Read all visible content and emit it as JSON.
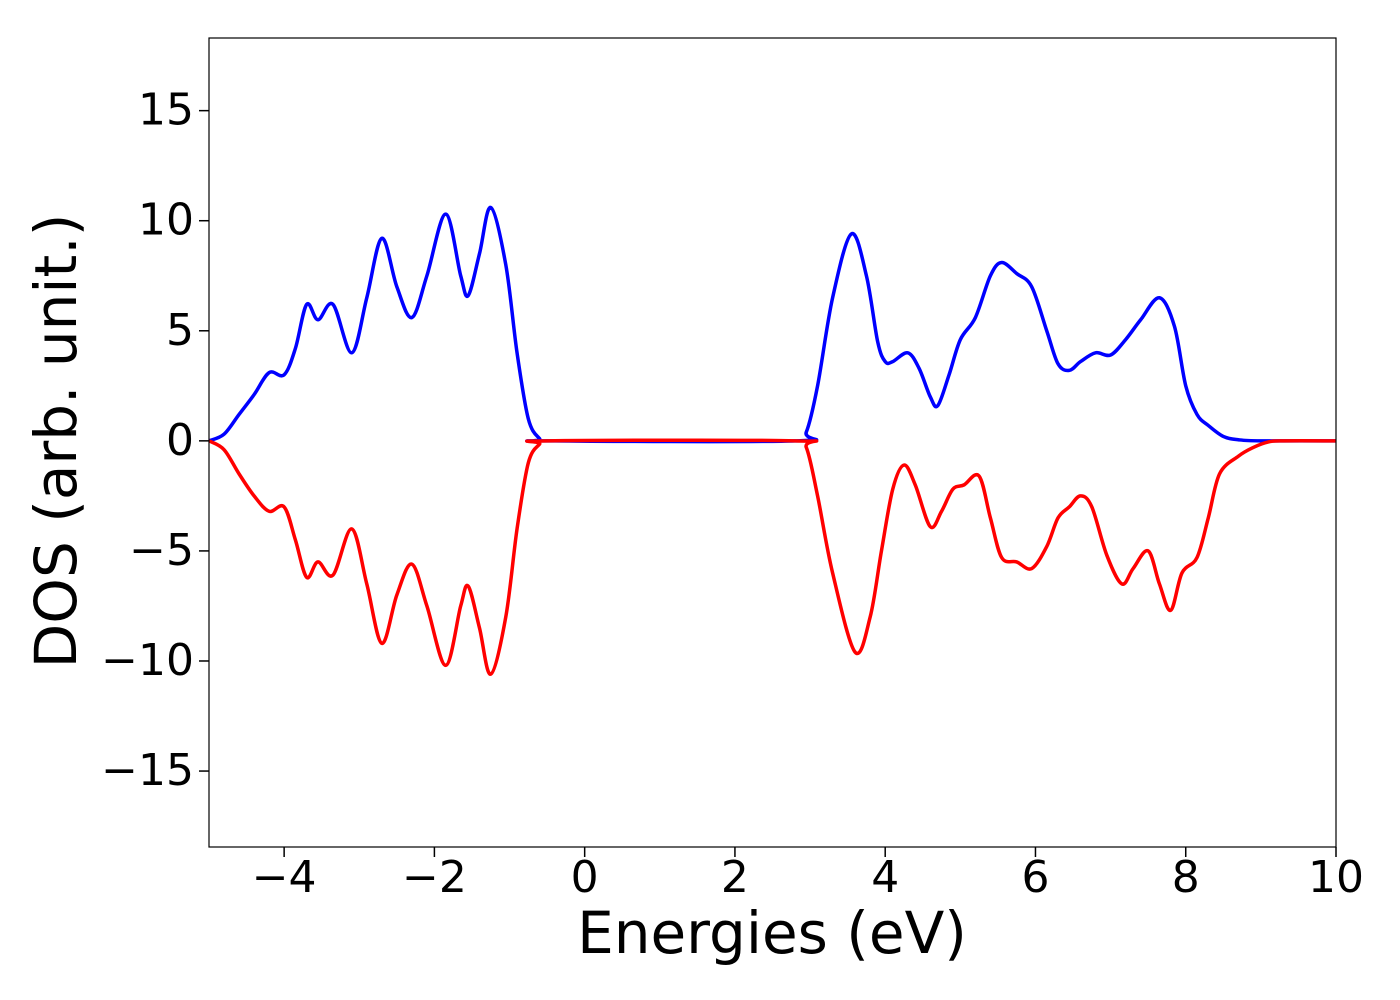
{
  "chart_data": {
    "type": "line",
    "xlabel": "Energies (eV)",
    "ylabel": "DOS (arb. unit.)",
    "xlim": [
      -5,
      10
    ],
    "ylim": [
      -18.45,
      18.3
    ],
    "xticks": [
      {
        "value": -4,
        "label": "−4"
      },
      {
        "value": -2,
        "label": "−2"
      },
      0,
      2,
      4,
      6,
      8,
      10
    ],
    "yticks": [
      {
        "value": -15,
        "label": "−15"
      },
      {
        "value": -10,
        "label": "−10"
      },
      {
        "value": -5,
        "label": "−5"
      },
      0,
      5,
      10,
      15
    ],
    "grid": false,
    "series": [
      {
        "color": "#0000ff",
        "x": [
          -5,
          -4.8,
          -4.6,
          -4.4,
          -4.2,
          -4.0,
          -3.85,
          -3.7,
          -3.55,
          -3.35,
          -3.1,
          -2.9,
          -2.7,
          -2.5,
          -2.3,
          -2.1,
          -1.85,
          -1.65,
          -1.55,
          -1.4,
          -1.25,
          -1.05,
          -0.9,
          -0.75,
          -0.6,
          -0.5,
          2.8,
          2.95,
          3.1,
          3.3,
          3.55,
          3.75,
          3.9,
          4.0,
          4.1,
          4.3,
          4.45,
          4.6,
          4.7,
          4.85,
          5.0,
          5.2,
          5.4,
          5.55,
          5.75,
          5.95,
          6.15,
          6.3,
          6.45,
          6.6,
          6.8,
          7.0,
          7.2,
          7.4,
          7.65,
          7.85,
          8.0,
          8.15,
          8.3,
          8.5,
          8.7,
          9.0,
          10
        ],
        "values": [
          0,
          0.3,
          1.2,
          2.1,
          3.1,
          3.0,
          4.2,
          6.2,
          5.5,
          6.2,
          4.0,
          6.5,
          9.2,
          7.0,
          5.6,
          7.5,
          10.3,
          7.5,
          6.6,
          8.5,
          10.6,
          8.0,
          4.0,
          1.0,
          0.1,
          0,
          0,
          0.4,
          2.5,
          6.5,
          9.4,
          7.5,
          4.5,
          3.6,
          3.6,
          4.0,
          3.3,
          2.0,
          1.6,
          3.0,
          4.6,
          5.6,
          7.5,
          8.1,
          7.6,
          7.0,
          5.0,
          3.5,
          3.2,
          3.6,
          4.0,
          3.9,
          4.6,
          5.5,
          6.5,
          5.2,
          2.5,
          1.2,
          0.7,
          0.2,
          0.05,
          0,
          0
        ]
      },
      {
        "color": "#ff0000",
        "x": [
          -5,
          -4.8,
          -4.6,
          -4.4,
          -4.2,
          -4.0,
          -3.85,
          -3.7,
          -3.55,
          -3.35,
          -3.1,
          -2.9,
          -2.7,
          -2.5,
          -2.3,
          -2.1,
          -1.85,
          -1.65,
          -1.55,
          -1.4,
          -1.25,
          -1.05,
          -0.9,
          -0.75,
          -0.6,
          -0.5,
          2.8,
          2.95,
          3.1,
          3.3,
          3.6,
          3.8,
          3.95,
          4.1,
          4.25,
          4.4,
          4.6,
          4.75,
          4.9,
          5.05,
          5.25,
          5.4,
          5.55,
          5.75,
          5.95,
          6.15,
          6.3,
          6.45,
          6.6,
          6.75,
          6.95,
          7.15,
          7.3,
          7.5,
          7.65,
          7.8,
          7.95,
          8.15,
          8.3,
          8.45,
          8.7,
          8.9,
          9.1,
          9.3,
          10
        ],
        "values": [
          0,
          -0.4,
          -1.5,
          -2.5,
          -3.2,
          -3.0,
          -4.5,
          -6.2,
          -5.5,
          -6.1,
          -4.0,
          -6.5,
          -9.2,
          -7.0,
          -5.6,
          -7.5,
          -10.2,
          -7.5,
          -6.6,
          -8.5,
          -10.6,
          -8.0,
          -4.0,
          -1.0,
          -0.15,
          0,
          0,
          -0.3,
          -2.5,
          -6.0,
          -9.6,
          -8.0,
          -5.0,
          -2.2,
          -1.1,
          -2.0,
          -3.9,
          -3.2,
          -2.2,
          -2.0,
          -1.6,
          -3.5,
          -5.3,
          -5.5,
          -5.8,
          -4.8,
          -3.5,
          -3.0,
          -2.5,
          -3.0,
          -5.2,
          -6.5,
          -5.8,
          -5.0,
          -6.5,
          -7.7,
          -6.0,
          -5.3,
          -3.5,
          -1.5,
          -0.7,
          -0.3,
          -0.05,
          0,
          0
        ]
      }
    ]
  }
}
